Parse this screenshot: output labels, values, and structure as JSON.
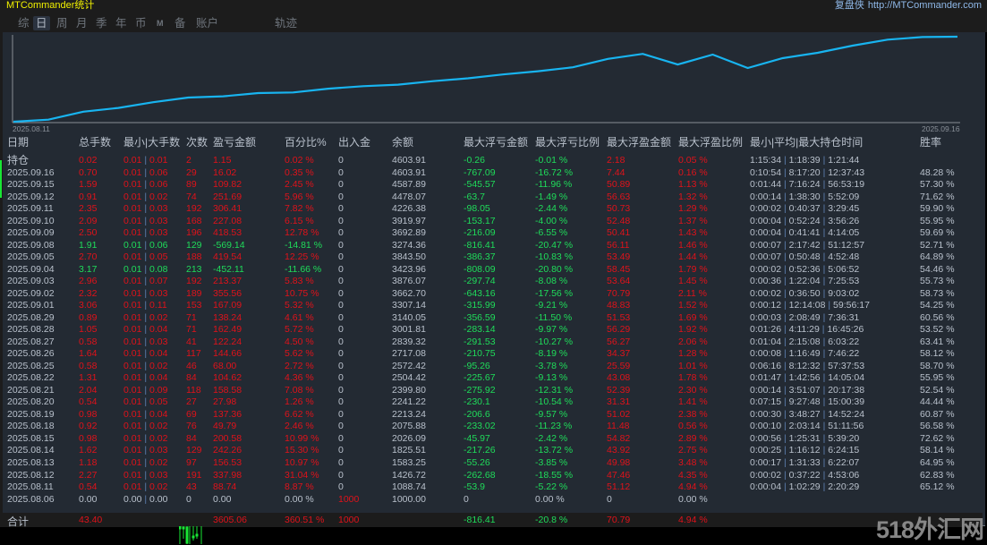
{
  "window": {
    "title": "MTCommander统计",
    "site_label": "复盘侠",
    "site_url": "http://MTCommander.com"
  },
  "tabs": [
    {
      "label": "综",
      "active": false
    },
    {
      "label": "日",
      "active": true
    },
    {
      "label": "周",
      "active": false
    },
    {
      "label": "月",
      "active": false
    },
    {
      "label": "季",
      "active": false
    },
    {
      "label": "年",
      "active": false
    },
    {
      "label": "币",
      "active": false
    },
    {
      "label": "M",
      "active": false
    },
    {
      "label": "备",
      "active": false
    },
    {
      "label": "账户",
      "active": false
    },
    {
      "label": "轨迹",
      "active": false
    }
  ],
  "chart": {
    "start_label": "2025.08.11",
    "end_label": "2025.09.16",
    "line_color": "#18b4f0"
  },
  "chart_data": {
    "type": "line",
    "title": "",
    "xlabel": "",
    "ylabel": "",
    "x_range": [
      "2025.08.11",
      "2025.09.16"
    ],
    "description": "Equity curve rising from ~1000 to ~4604, with dips around 2025.09.04 and 2025.09.08",
    "x": [
      "2025.08.06",
      "2025.08.11",
      "2025.08.12",
      "2025.08.13",
      "2025.08.14",
      "2025.08.15",
      "2025.08.18",
      "2025.08.19",
      "2025.08.20",
      "2025.08.21",
      "2025.08.22",
      "2025.08.25",
      "2025.08.26",
      "2025.08.27",
      "2025.08.28",
      "2025.08.29",
      "2025.09.01",
      "2025.09.02",
      "2025.09.03",
      "2025.09.04",
      "2025.09.05",
      "2025.09.08",
      "2025.09.09",
      "2025.09.10",
      "2025.09.11",
      "2025.09.12",
      "2025.09.15",
      "2025.09.16"
    ],
    "values": [
      1000.0,
      1088.74,
      1426.72,
      1583.25,
      1825.51,
      2026.09,
      2075.88,
      2213.24,
      2241.22,
      2399.8,
      2504.42,
      2572.42,
      2717.08,
      2839.32,
      3001.81,
      3140.05,
      3307.14,
      3662.7,
      3876.07,
      3423.96,
      3843.5,
      3274.36,
      3692.89,
      3919.97,
      4226.38,
      4478.07,
      4587.89,
      4603.91
    ]
  },
  "table": {
    "headers": [
      "日期",
      "总手数",
      "最小|大手数",
      "次数",
      "盈亏金额",
      "百分比%",
      "出入金",
      "余额",
      "最大浮亏金额",
      "最大浮亏比例",
      "最大浮盈金额",
      "最大浮盈比例",
      "最小|平均|最大持仓时间",
      "胜率"
    ],
    "rows": [
      {
        "date": "持仓",
        "lots": "0.02",
        "minmax": [
          "0.01",
          "0.01"
        ],
        "count": "2",
        "pnl": "1.15",
        "pct": "0.02 %",
        "io": "0",
        "balance": "4603.91",
        "max_dd": "-0.26",
        "max_dd_pct": "-0.01 %",
        "max_fp": "2.18",
        "max_fp_pct": "0.05 %",
        "hold": [
          "1:15:34",
          "1:18:39",
          "1:21:44"
        ],
        "win": "",
        "tone": "red"
      },
      {
        "date": "2025.09.16",
        "lots": "0.70",
        "minmax": [
          "0.01",
          "0.06"
        ],
        "count": "29",
        "pnl": "16.02",
        "pct": "0.35 %",
        "io": "0",
        "balance": "4603.91",
        "max_dd": "-767.09",
        "max_dd_pct": "-16.72 %",
        "max_fp": "7.44",
        "max_fp_pct": "0.16 %",
        "hold": [
          "0:10:54",
          "8:17:20",
          "12:37:43"
        ],
        "win": "48.28 %",
        "tone": "red"
      },
      {
        "date": "2025.09.15",
        "lots": "1.59",
        "minmax": [
          "0.01",
          "0.06"
        ],
        "count": "89",
        "pnl": "109.82",
        "pct": "2.45 %",
        "io": "0",
        "balance": "4587.89",
        "max_dd": "-545.57",
        "max_dd_pct": "-11.96 %",
        "max_fp": "50.89",
        "max_fp_pct": "1.13 %",
        "hold": [
          "0:01:44",
          "7:16:24",
          "56:53:19"
        ],
        "win": "57.30 %",
        "tone": "red"
      },
      {
        "date": "2025.09.12",
        "lots": "0.91",
        "minmax": [
          "0.01",
          "0.02"
        ],
        "count": "74",
        "pnl": "251.69",
        "pct": "5.96 %",
        "io": "0",
        "balance": "4478.07",
        "max_dd": "-63.7",
        "max_dd_pct": "-1.49 %",
        "max_fp": "56.63",
        "max_fp_pct": "1.32 %",
        "hold": [
          "0:00:14",
          "1:38:30",
          "5:52:09"
        ],
        "win": "71.62 %",
        "tone": "red"
      },
      {
        "date": "2025.09.11",
        "lots": "2.35",
        "minmax": [
          "0.01",
          "0.03"
        ],
        "count": "192",
        "pnl": "306.41",
        "pct": "7.82 %",
        "io": "0",
        "balance": "4226.38",
        "max_dd": "-98.05",
        "max_dd_pct": "-2.44 %",
        "max_fp": "50.73",
        "max_fp_pct": "1.29 %",
        "hold": [
          "0:00:02",
          "0:40:37",
          "3:29:45"
        ],
        "win": "59.90 %",
        "tone": "red"
      },
      {
        "date": "2025.09.10",
        "lots": "2.09",
        "minmax": [
          "0.01",
          "0.03"
        ],
        "count": "168",
        "pnl": "227.08",
        "pct": "6.15 %",
        "io": "0",
        "balance": "3919.97",
        "max_dd": "-153.17",
        "max_dd_pct": "-4.00 %",
        "max_fp": "52.48",
        "max_fp_pct": "1.37 %",
        "hold": [
          "0:00:04",
          "0:52:24",
          "3:56:26"
        ],
        "win": "55.95 %",
        "tone": "red"
      },
      {
        "date": "2025.09.09",
        "lots": "2.50",
        "minmax": [
          "0.01",
          "0.03"
        ],
        "count": "196",
        "pnl": "418.53",
        "pct": "12.78 %",
        "io": "0",
        "balance": "3692.89",
        "max_dd": "-216.09",
        "max_dd_pct": "-6.55 %",
        "max_fp": "50.41",
        "max_fp_pct": "1.43 %",
        "hold": [
          "0:00:04",
          "0:41:41",
          "4:14:05"
        ],
        "win": "59.69 %",
        "tone": "red"
      },
      {
        "date": "2025.09.08",
        "lots": "1.91",
        "minmax": [
          "0.01",
          "0.06"
        ],
        "count": "129",
        "pnl": "-569.14",
        "pct": "-14.81 %",
        "io": "0",
        "balance": "3274.36",
        "max_dd": "-816.41",
        "max_dd_pct": "-20.47 %",
        "max_fp": "56.11",
        "max_fp_pct": "1.46 %",
        "hold": [
          "0:00:07",
          "2:17:42",
          "51:12:57"
        ],
        "win": "52.71 %",
        "tone": "green"
      },
      {
        "date": "2025.09.05",
        "lots": "2.70",
        "minmax": [
          "0.01",
          "0.05"
        ],
        "count": "188",
        "pnl": "419.54",
        "pct": "12.25 %",
        "io": "0",
        "balance": "3843.50",
        "max_dd": "-386.37",
        "max_dd_pct": "-10.83 %",
        "max_fp": "53.49",
        "max_fp_pct": "1.44 %",
        "hold": [
          "0:00:07",
          "0:50:48",
          "4:52:48"
        ],
        "win": "64.89 %",
        "tone": "red"
      },
      {
        "date": "2025.09.04",
        "lots": "3.17",
        "minmax": [
          "0.01",
          "0.08"
        ],
        "count": "213",
        "pnl": "-452.11",
        "pct": "-11.66 %",
        "io": "0",
        "balance": "3423.96",
        "max_dd": "-808.09",
        "max_dd_pct": "-20.80 %",
        "max_fp": "58.45",
        "max_fp_pct": "1.79 %",
        "hold": [
          "0:00:02",
          "0:52:36",
          "5:06:52"
        ],
        "win": "54.46 %",
        "tone": "green"
      },
      {
        "date": "2025.09.03",
        "lots": "2.96",
        "minmax": [
          "0.01",
          "0.07"
        ],
        "count": "192",
        "pnl": "213.37",
        "pct": "5.83 %",
        "io": "0",
        "balance": "3876.07",
        "max_dd": "-297.74",
        "max_dd_pct": "-8.08 %",
        "max_fp": "53.64",
        "max_fp_pct": "1.45 %",
        "hold": [
          "0:00:36",
          "1:22:04",
          "7:25:53"
        ],
        "win": "55.73 %",
        "tone": "red"
      },
      {
        "date": "2025.09.02",
        "lots": "2.32",
        "minmax": [
          "0.01",
          "0.03"
        ],
        "count": "189",
        "pnl": "355.56",
        "pct": "10.75 %",
        "io": "0",
        "balance": "3662.70",
        "max_dd": "-643.16",
        "max_dd_pct": "-17.56 %",
        "max_fp": "70.79",
        "max_fp_pct": "2.11 %",
        "hold": [
          "0:00:02",
          "0:36:50",
          "9:03:02"
        ],
        "win": "58.73 %",
        "tone": "red"
      },
      {
        "date": "2025.09.01",
        "lots": "3.06",
        "minmax": [
          "0.01",
          "0.11"
        ],
        "count": "153",
        "pnl": "167.09",
        "pct": "5.32 %",
        "io": "0",
        "balance": "3307.14",
        "max_dd": "-315.99",
        "max_dd_pct": "-9.21 %",
        "max_fp": "48.83",
        "max_fp_pct": "1.52 %",
        "hold": [
          "0:00:12",
          "12:14:08",
          "59:56:17"
        ],
        "win": "54.25 %",
        "tone": "red"
      },
      {
        "date": "2025.08.29",
        "lots": "0.89",
        "minmax": [
          "0.01",
          "0.02"
        ],
        "count": "71",
        "pnl": "138.24",
        "pct": "4.61 %",
        "io": "0",
        "balance": "3140.05",
        "max_dd": "-356.59",
        "max_dd_pct": "-11.50 %",
        "max_fp": "51.53",
        "max_fp_pct": "1.69 %",
        "hold": [
          "0:00:03",
          "2:08:49",
          "7:36:31"
        ],
        "win": "60.56 %",
        "tone": "red"
      },
      {
        "date": "2025.08.28",
        "lots": "1.05",
        "minmax": [
          "0.01",
          "0.04"
        ],
        "count": "71",
        "pnl": "162.49",
        "pct": "5.72 %",
        "io": "0",
        "balance": "3001.81",
        "max_dd": "-283.14",
        "max_dd_pct": "-9.97 %",
        "max_fp": "56.29",
        "max_fp_pct": "1.92 %",
        "hold": [
          "0:01:26",
          "4:11:29",
          "16:45:26"
        ],
        "win": "53.52 %",
        "tone": "red"
      },
      {
        "date": "2025.08.27",
        "lots": "0.58",
        "minmax": [
          "0.01",
          "0.03"
        ],
        "count": "41",
        "pnl": "122.24",
        "pct": "4.50 %",
        "io": "0",
        "balance": "2839.32",
        "max_dd": "-291.53",
        "max_dd_pct": "-10.27 %",
        "max_fp": "56.27",
        "max_fp_pct": "2.06 %",
        "hold": [
          "0:01:04",
          "2:15:08",
          "6:03:22"
        ],
        "win": "63.41 %",
        "tone": "red"
      },
      {
        "date": "2025.08.26",
        "lots": "1.64",
        "minmax": [
          "0.01",
          "0.04"
        ],
        "count": "117",
        "pnl": "144.66",
        "pct": "5.62 %",
        "io": "0",
        "balance": "2717.08",
        "max_dd": "-210.75",
        "max_dd_pct": "-8.19 %",
        "max_fp": "34.37",
        "max_fp_pct": "1.28 %",
        "hold": [
          "0:00:08",
          "1:16:49",
          "7:46:22"
        ],
        "win": "58.12 %",
        "tone": "red"
      },
      {
        "date": "2025.08.25",
        "lots": "0.58",
        "minmax": [
          "0.01",
          "0.02"
        ],
        "count": "46",
        "pnl": "68.00",
        "pct": "2.72 %",
        "io": "0",
        "balance": "2572.42",
        "max_dd": "-95.26",
        "max_dd_pct": "-3.78 %",
        "max_fp": "25.59",
        "max_fp_pct": "1.01 %",
        "hold": [
          "0:06:16",
          "8:12:32",
          "57:37:53"
        ],
        "win": "58.70 %",
        "tone": "red"
      },
      {
        "date": "2025.08.22",
        "lots": "1.31",
        "minmax": [
          "0.01",
          "0.04"
        ],
        "count": "84",
        "pnl": "104.62",
        "pct": "4.36 %",
        "io": "0",
        "balance": "2504.42",
        "max_dd": "-225.67",
        "max_dd_pct": "-9.13 %",
        "max_fp": "43.08",
        "max_fp_pct": "1.78 %",
        "hold": [
          "0:01:47",
          "1:42:56",
          "14:05:04"
        ],
        "win": "55.95 %",
        "tone": "red"
      },
      {
        "date": "2025.08.21",
        "lots": "2.04",
        "minmax": [
          "0.01",
          "0.09"
        ],
        "count": "118",
        "pnl": "158.58",
        "pct": "7.08 %",
        "io": "0",
        "balance": "2399.80",
        "max_dd": "-275.92",
        "max_dd_pct": "-12.31 %",
        "max_fp": "52.39",
        "max_fp_pct": "2.30 %",
        "hold": [
          "0:00:14",
          "3:51:07",
          "20:17:38"
        ],
        "win": "52.54 %",
        "tone": "red"
      },
      {
        "date": "2025.08.20",
        "lots": "0.54",
        "minmax": [
          "0.01",
          "0.05"
        ],
        "count": "27",
        "pnl": "27.98",
        "pct": "1.26 %",
        "io": "0",
        "balance": "2241.22",
        "max_dd": "-230.1",
        "max_dd_pct": "-10.54 %",
        "max_fp": "31.31",
        "max_fp_pct": "1.41 %",
        "hold": [
          "0:07:15",
          "9:27:48",
          "15:00:39"
        ],
        "win": "44.44 %",
        "tone": "red"
      },
      {
        "date": "2025.08.19",
        "lots": "0.98",
        "minmax": [
          "0.01",
          "0.04"
        ],
        "count": "69",
        "pnl": "137.36",
        "pct": "6.62 %",
        "io": "0",
        "balance": "2213.24",
        "max_dd": "-206.6",
        "max_dd_pct": "-9.57 %",
        "max_fp": "51.02",
        "max_fp_pct": "2.38 %",
        "hold": [
          "0:00:30",
          "3:48:27",
          "14:52:24"
        ],
        "win": "60.87 %",
        "tone": "red"
      },
      {
        "date": "2025.08.18",
        "lots": "0.92",
        "minmax": [
          "0.01",
          "0.02"
        ],
        "count": "76",
        "pnl": "49.79",
        "pct": "2.46 %",
        "io": "0",
        "balance": "2075.88",
        "max_dd": "-233.02",
        "max_dd_pct": "-11.23 %",
        "max_fp": "11.48",
        "max_fp_pct": "0.56 %",
        "hold": [
          "0:00:10",
          "2:03:14",
          "51:11:56"
        ],
        "win": "56.58 %",
        "tone": "red"
      },
      {
        "date": "2025.08.15",
        "lots": "0.98",
        "minmax": [
          "0.01",
          "0.02"
        ],
        "count": "84",
        "pnl": "200.58",
        "pct": "10.99 %",
        "io": "0",
        "balance": "2026.09",
        "max_dd": "-45.97",
        "max_dd_pct": "-2.42 %",
        "max_fp": "54.82",
        "max_fp_pct": "2.89 %",
        "hold": [
          "0:00:56",
          "1:25:31",
          "5:39:20"
        ],
        "win": "72.62 %",
        "tone": "red"
      },
      {
        "date": "2025.08.14",
        "lots": "1.62",
        "minmax": [
          "0.01",
          "0.03"
        ],
        "count": "129",
        "pnl": "242.26",
        "pct": "15.30 %",
        "io": "0",
        "balance": "1825.51",
        "max_dd": "-217.26",
        "max_dd_pct": "-13.72 %",
        "max_fp": "43.92",
        "max_fp_pct": "2.75 %",
        "hold": [
          "0:00:25",
          "1:16:12",
          "6:24:15"
        ],
        "win": "58.14 %",
        "tone": "red"
      },
      {
        "date": "2025.08.13",
        "lots": "1.18",
        "minmax": [
          "0.01",
          "0.02"
        ],
        "count": "97",
        "pnl": "156.53",
        "pct": "10.97 %",
        "io": "0",
        "balance": "1583.25",
        "max_dd": "-55.26",
        "max_dd_pct": "-3.85 %",
        "max_fp": "49.98",
        "max_fp_pct": "3.48 %",
        "hold": [
          "0:00:17",
          "1:31:33",
          "6:22:07"
        ],
        "win": "64.95 %",
        "tone": "red"
      },
      {
        "date": "2025.08.12",
        "lots": "2.27",
        "minmax": [
          "0.01",
          "0.03"
        ],
        "count": "191",
        "pnl": "337.98",
        "pct": "31.04 %",
        "io": "0",
        "balance": "1426.72",
        "max_dd": "-262.68",
        "max_dd_pct": "-18.55 %",
        "max_fp": "47.46",
        "max_fp_pct": "4.35 %",
        "hold": [
          "0:00:02",
          "0:37:22",
          "4:53:06"
        ],
        "win": "62.83 %",
        "tone": "red"
      },
      {
        "date": "2025.08.11",
        "lots": "0.54",
        "minmax": [
          "0.01",
          "0.02"
        ],
        "count": "43",
        "pnl": "88.74",
        "pct": "8.87 %",
        "io": "0",
        "balance": "1088.74",
        "max_dd": "-53.9",
        "max_dd_pct": "-5.22 %",
        "max_fp": "51.12",
        "max_fp_pct": "4.94 %",
        "hold": [
          "0:00:04",
          "1:02:29",
          "2:20:29"
        ],
        "win": "65.12 %",
        "tone": "red"
      },
      {
        "date": "2025.08.06",
        "lots": "0.00",
        "minmax": [
          "0.00",
          "0.00"
        ],
        "count": "0",
        "pnl": "0.00",
        "pct": "0.00 %",
        "io": "1000",
        "balance": "1000.00",
        "max_dd": "0",
        "max_dd_pct": "0.00 %",
        "max_fp": "0",
        "max_fp_pct": "0.00 %",
        "hold": null,
        "win": "",
        "tone": "grey"
      }
    ],
    "total": {
      "label": "合计",
      "lots": "43.40",
      "pnl": "3605.06",
      "pct": "360.51 %",
      "io": "1000",
      "max_dd": "-816.41",
      "max_dd_pct": "-20.8 %",
      "max_fp": "70.79",
      "max_fp_pct": "4.94 %"
    }
  },
  "watermark": "518外汇网",
  "colors": {
    "profit": "#e0121a",
    "loss": "#1fdc5a",
    "text": "#b9c1cc",
    "title": "#f0f000",
    "panel_bg": "#232a33"
  }
}
